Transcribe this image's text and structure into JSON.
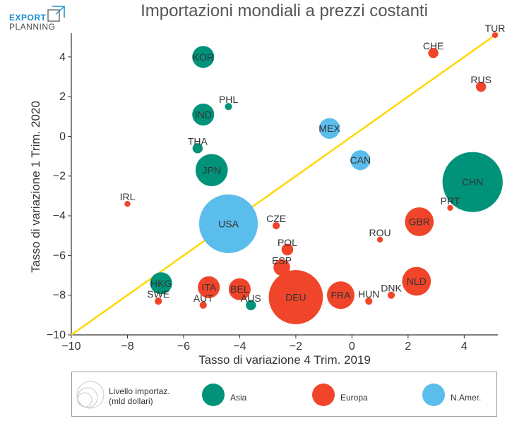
{
  "logo": {
    "line1": "EXPORT",
    "line2": "PLANNING"
  },
  "chart_data": {
    "type": "scatter",
    "title": "Importazioni mondiali a prezzi costanti",
    "xlabel": "Tasso di variazione 4 Trim. 2019",
    "ylabel": "Tasso di variazione 1 Trim. 2020",
    "xlim": [
      -10,
      5.2
    ],
    "ylim": [
      -10,
      5.2
    ],
    "x_ticks": [
      -10,
      -8,
      -6,
      -4,
      -2,
      0,
      2,
      4
    ],
    "y_ticks": [
      -10,
      -8,
      -6,
      -4,
      -2,
      0,
      2,
      4
    ],
    "x_tick_labels": [
      "−10",
      "−8",
      "−6",
      "−4",
      "−2",
      "0",
      "2",
      "4"
    ],
    "y_tick_labels": [
      "−10",
      "−8",
      "−6",
      "−4",
      "−2",
      "0",
      "2",
      "4"
    ],
    "reference_line": {
      "from": [
        -10,
        -10
      ],
      "to": [
        5.2,
        5.2
      ],
      "color": "#ffd700"
    },
    "grid": false,
    "colors": {
      "Asia": "#00937a",
      "Europa": "#f0452a",
      "N.Amer.": "#5bbdeb"
    },
    "points": [
      {
        "label": "TUR",
        "x": 5.1,
        "y": 5.1,
        "size": 0.2,
        "group": "Europa"
      },
      {
        "label": "CHE",
        "x": 2.9,
        "y": 4.2,
        "size": 0.6,
        "group": "Europa"
      },
      {
        "label": "RUS",
        "x": 4.6,
        "y": 2.5,
        "size": 0.6,
        "group": "Europa"
      },
      {
        "label": "KOR",
        "x": -5.3,
        "y": 4.0,
        "size": 2.8,
        "group": "Asia"
      },
      {
        "label": "PHL",
        "x": -4.4,
        "y": 1.5,
        "size": 0.3,
        "group": "Asia"
      },
      {
        "label": "IND",
        "x": -5.3,
        "y": 1.1,
        "size": 2.8,
        "group": "Asia"
      },
      {
        "label": "MEX",
        "x": -0.8,
        "y": 0.4,
        "size": 2.5,
        "group": "N.Amer."
      },
      {
        "label": "THA",
        "x": -5.5,
        "y": -0.6,
        "size": 0.6,
        "group": "Asia"
      },
      {
        "label": "CAN",
        "x": 0.3,
        "y": -1.2,
        "size": 2.3,
        "group": "N.Amer."
      },
      {
        "label": "JPN",
        "x": -5.0,
        "y": -1.7,
        "size": 6.0,
        "group": "Asia"
      },
      {
        "label": "CHN",
        "x": 4.3,
        "y": -2.3,
        "size": 21.0,
        "group": "Asia"
      },
      {
        "label": "IRL",
        "x": -8.0,
        "y": -3.4,
        "size": 0.2,
        "group": "Europa"
      },
      {
        "label": "PRT",
        "x": 3.5,
        "y": -3.6,
        "size": 0.2,
        "group": "Europa"
      },
      {
        "label": "USA",
        "x": -4.4,
        "y": -4.4,
        "size": 20.0,
        "group": "N.Amer."
      },
      {
        "label": "CZE",
        "x": -2.7,
        "y": -4.5,
        "size": 0.3,
        "group": "Europa"
      },
      {
        "label": "GBR",
        "x": 2.4,
        "y": -4.3,
        "size": 4.8,
        "group": "Europa"
      },
      {
        "label": "ROU",
        "x": 1.0,
        "y": -5.2,
        "size": 0.2,
        "group": "Europa"
      },
      {
        "label": "POL",
        "x": -2.3,
        "y": -5.7,
        "size": 0.8,
        "group": "Europa"
      },
      {
        "label": "ESP",
        "x": -2.5,
        "y": -6.6,
        "size": 1.6,
        "group": "Europa"
      },
      {
        "label": "HKG",
        "x": -6.8,
        "y": -7.4,
        "size": 2.8,
        "group": "Asia"
      },
      {
        "label": "ITA",
        "x": -5.1,
        "y": -7.6,
        "size": 2.8,
        "group": "Europa"
      },
      {
        "label": "BEL",
        "x": -4.0,
        "y": -7.7,
        "size": 2.8,
        "group": "Europa"
      },
      {
        "label": "NLD",
        "x": 2.3,
        "y": -7.3,
        "size": 4.8,
        "group": "Europa"
      },
      {
        "label": "DEU",
        "x": -2.0,
        "y": -8.1,
        "size": 17.0,
        "group": "Europa"
      },
      {
        "label": "FRA",
        "x": -0.4,
        "y": -8.0,
        "size": 4.4,
        "group": "Europa"
      },
      {
        "label": "DNK",
        "x": 1.4,
        "y": -8.0,
        "size": 0.3,
        "group": "Europa"
      },
      {
        "label": "HUN",
        "x": 0.6,
        "y": -8.3,
        "size": 0.3,
        "group": "Europa"
      },
      {
        "label": "SWE",
        "x": -6.9,
        "y": -8.3,
        "size": 0.3,
        "group": "Europa"
      },
      {
        "label": "AUT",
        "x": -5.3,
        "y": -8.5,
        "size": 0.3,
        "group": "Europa"
      },
      {
        "label": "AUS",
        "x": -3.6,
        "y": -8.5,
        "size": 0.6,
        "group": "Asia"
      }
    ],
    "legend": {
      "placement": "bottom",
      "size_label_line1": "Livello importaz.",
      "size_label_line2": "(mld dollari)",
      "entries": [
        {
          "name": "Asia",
          "color": "#00937a"
        },
        {
          "name": "Europa",
          "color": "#f0452a"
        },
        {
          "name": "N.Amer.",
          "color": "#5bbdeb"
        }
      ]
    }
  }
}
